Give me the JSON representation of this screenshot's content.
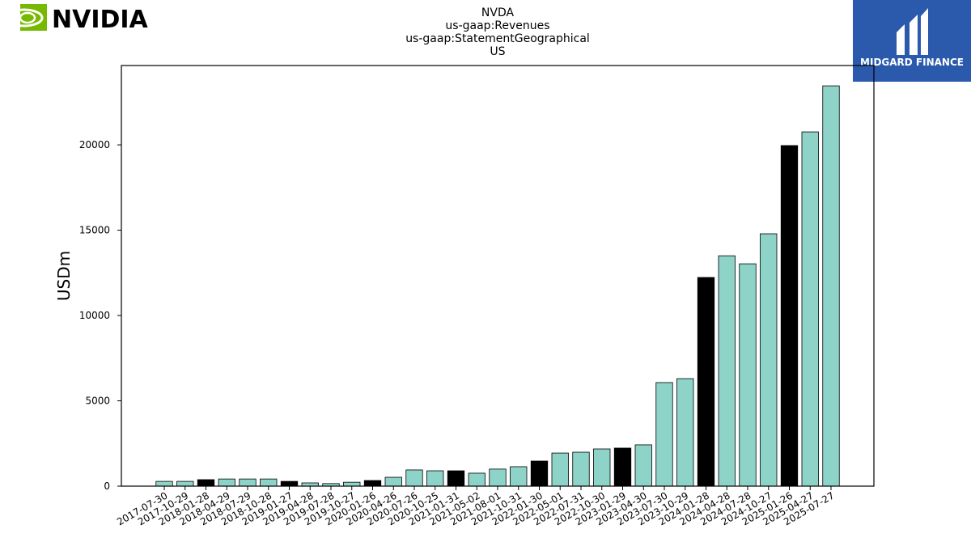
{
  "brand": {
    "left": "NVIDIA",
    "right": "MIDGARD FINANCE"
  },
  "chart_data": {
    "type": "bar",
    "title": [
      "NVDA",
      "us-gaap:Revenues",
      "us-gaap:StatementGeographical",
      "US"
    ],
    "ylabel": "USDm",
    "categories": [
      "2017-07-30",
      "2017-10-29",
      "2018-01-28",
      "2018-04-29",
      "2018-07-29",
      "2018-10-28",
      "2019-01-27",
      "2019-04-28",
      "2019-07-28",
      "2019-10-27",
      "2020-01-26",
      "2020-04-26",
      "2020-07-26",
      "2020-10-25",
      "2021-01-31",
      "2021-05-02",
      "2021-08-01",
      "2021-10-31",
      "2022-01-30",
      "2022-05-01",
      "2022-07-31",
      "2022-10-30",
      "2023-01-29",
      "2023-04-30",
      "2023-07-30",
      "2023-10-29",
      "2024-01-28",
      "2024-04-28",
      "2024-07-28",
      "2024-10-27",
      "2025-01-26",
      "2025-04-27",
      "2025-07-27"
    ],
    "values": [
      280,
      280,
      380,
      420,
      420,
      420,
      280,
      190,
      150,
      230,
      330,
      520,
      950,
      900,
      900,
      760,
      1000,
      1140,
      1470,
      1940,
      1990,
      2180,
      2230,
      2420,
      6070,
      6300,
      12230,
      13500,
      13030,
      14790,
      19960,
      20760,
      23460
    ],
    "colors": [
      "#8dd3c7",
      "#8dd3c7",
      "#000000",
      "#8dd3c7",
      "#8dd3c7",
      "#8dd3c7",
      "#000000",
      "#8dd3c7",
      "#8dd3c7",
      "#8dd3c7",
      "#000000",
      "#8dd3c7",
      "#8dd3c7",
      "#8dd3c7",
      "#000000",
      "#8dd3c7",
      "#8dd3c7",
      "#8dd3c7",
      "#000000",
      "#8dd3c7",
      "#8dd3c7",
      "#8dd3c7",
      "#000000",
      "#8dd3c7",
      "#8dd3c7",
      "#8dd3c7",
      "#000000",
      "#8dd3c7",
      "#8dd3c7",
      "#8dd3c7",
      "#000000",
      "#8dd3c7",
      "#8dd3c7"
    ],
    "ylim": [
      0,
      24650
    ],
    "yticks": [
      0,
      5000,
      10000,
      15000,
      20000
    ],
    "grid": false
  }
}
